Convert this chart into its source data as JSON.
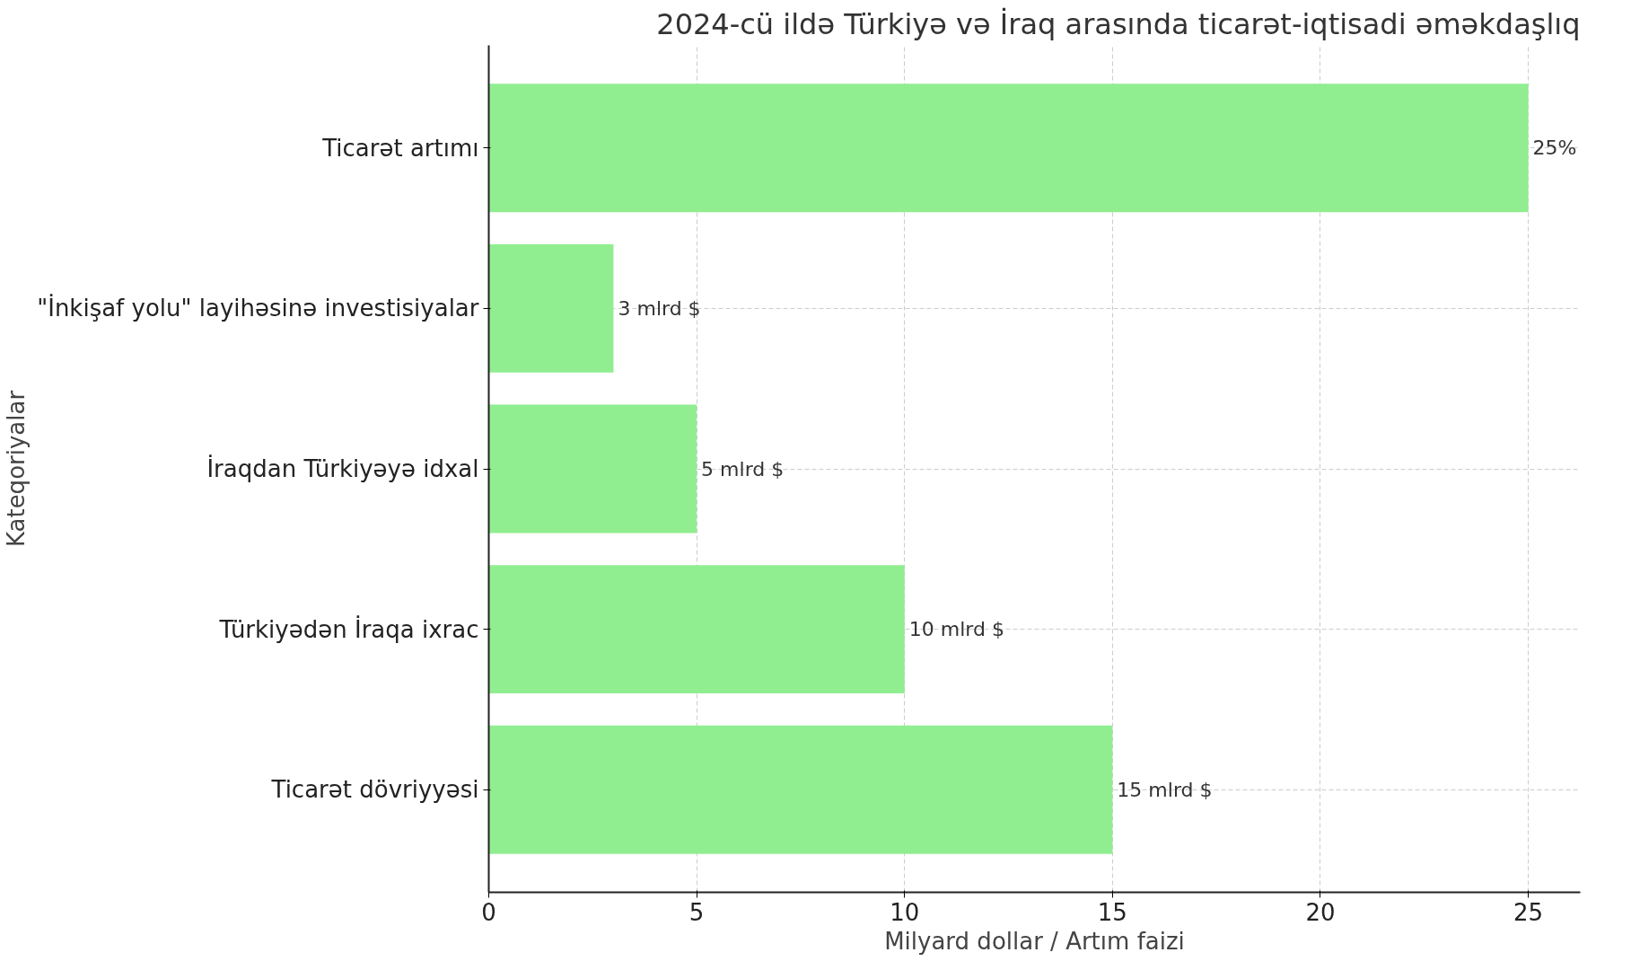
{
  "chart_data": {
    "type": "bar",
    "orientation": "horizontal",
    "title": "2024-cü ildə Türkiyə və İraq arasında ticarət-iqtisadi əməkdaşlıq",
    "xlabel": "Milyard dollar / Artım faizi",
    "ylabel": "Kateqoriyalar",
    "categories": [
      "Ticarət artımı",
      "\"İnkişaf yolu\" layihəsinə investisiyalar",
      "İraqdan Türkiyəyə idxal",
      "Türkiyədən İraqa ixrac",
      "Ticarət dövriyyəsi"
    ],
    "values": [
      25,
      3,
      5,
      10,
      15
    ],
    "value_labels": [
      "25%",
      "3 mlrd $",
      "5 mlrd $",
      "10 mlrd $",
      "15 mlrd $"
    ],
    "color": "#90ee90",
    "xlim": [
      0,
      26.25
    ],
    "xticks": [
      0,
      5,
      10,
      15,
      20,
      25
    ],
    "grid": true
  }
}
